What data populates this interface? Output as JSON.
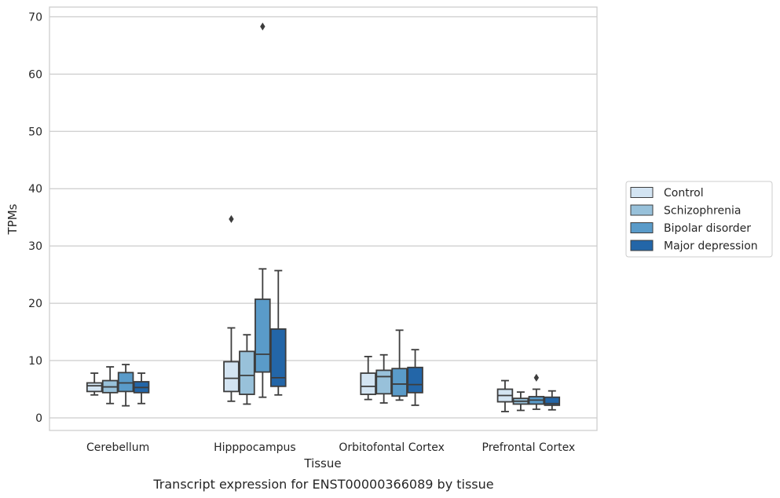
{
  "chart_data": {
    "type": "boxplot",
    "title": "",
    "caption": "Transcript expression for ENST00000366089 by tissue",
    "xlabel": "Tissue",
    "ylabel": "TPMs",
    "ylim": [
      -2.2,
      71.7
    ],
    "yticks": [
      0,
      10,
      20,
      30,
      40,
      50,
      60,
      70
    ],
    "grid": true,
    "legend_position": "right",
    "categories": [
      "Cerebellum",
      "Hipppocampus",
      "Orbitofontal Cortex",
      "Prefrontal Cortex"
    ],
    "series": [
      {
        "name": "Control",
        "color": "#d3e4f2",
        "boxes": [
          {
            "whisker_low": 4.0,
            "q1": 4.6,
            "median": 5.6,
            "q3": 6.1,
            "whisker_high": 7.8,
            "outliers": []
          },
          {
            "whisker_low": 2.9,
            "q1": 4.6,
            "median": 6.9,
            "q3": 9.8,
            "whisker_high": 15.7,
            "outliers": [
              34.7
            ]
          },
          {
            "whisker_low": 3.2,
            "q1": 4.1,
            "median": 5.5,
            "q3": 7.8,
            "whisker_high": 10.7,
            "outliers": []
          },
          {
            "whisker_low": 1.1,
            "q1": 2.8,
            "median": 3.9,
            "q3": 5.0,
            "whisker_high": 6.5,
            "outliers": []
          }
        ]
      },
      {
        "name": "Schizophrenia",
        "color": "#98c1da",
        "boxes": [
          {
            "whisker_low": 2.5,
            "q1": 4.4,
            "median": 5.4,
            "q3": 6.5,
            "whisker_high": 8.9,
            "outliers": []
          },
          {
            "whisker_low": 2.4,
            "q1": 4.1,
            "median": 7.4,
            "q3": 11.6,
            "whisker_high": 14.5,
            "outliers": []
          },
          {
            "whisker_low": 2.6,
            "q1": 4.2,
            "median": 7.2,
            "q3": 8.3,
            "whisker_high": 11.0,
            "outliers": []
          },
          {
            "whisker_low": 1.3,
            "q1": 2.4,
            "median": 2.9,
            "q3": 3.4,
            "whisker_high": 4.5,
            "outliers": []
          }
        ]
      },
      {
        "name": "Bipolar disorder",
        "color": "#5a9bc9",
        "boxes": [
          {
            "whisker_low": 2.1,
            "q1": 4.6,
            "median": 6.1,
            "q3": 7.9,
            "whisker_high": 9.3,
            "outliers": []
          },
          {
            "whisker_low": 3.6,
            "q1": 8.0,
            "median": 11.1,
            "q3": 20.7,
            "whisker_high": 26.0,
            "outliers": [
              68.3
            ]
          },
          {
            "whisker_low": 3.1,
            "q1": 3.8,
            "median": 5.9,
            "q3": 8.6,
            "whisker_high": 15.3,
            "outliers": []
          },
          {
            "whisker_low": 1.5,
            "q1": 2.4,
            "median": 3.1,
            "q3": 3.7,
            "whisker_high": 5.0,
            "outliers": [
              7.0
            ]
          }
        ]
      },
      {
        "name": "Major depression",
        "color": "#2366a8",
        "boxes": [
          {
            "whisker_low": 2.5,
            "q1": 4.4,
            "median": 5.3,
            "q3": 6.3,
            "whisker_high": 7.8,
            "outliers": []
          },
          {
            "whisker_low": 4.0,
            "q1": 5.5,
            "median": 7.0,
            "q3": 15.5,
            "whisker_high": 25.7,
            "outliers": []
          },
          {
            "whisker_low": 2.2,
            "q1": 4.4,
            "median": 5.8,
            "q3": 8.8,
            "whisker_high": 11.9,
            "outliers": []
          },
          {
            "whisker_low": 1.4,
            "q1": 2.2,
            "median": 2.5,
            "q3": 3.6,
            "whisker_high": 4.7,
            "outliers": []
          }
        ]
      }
    ]
  }
}
